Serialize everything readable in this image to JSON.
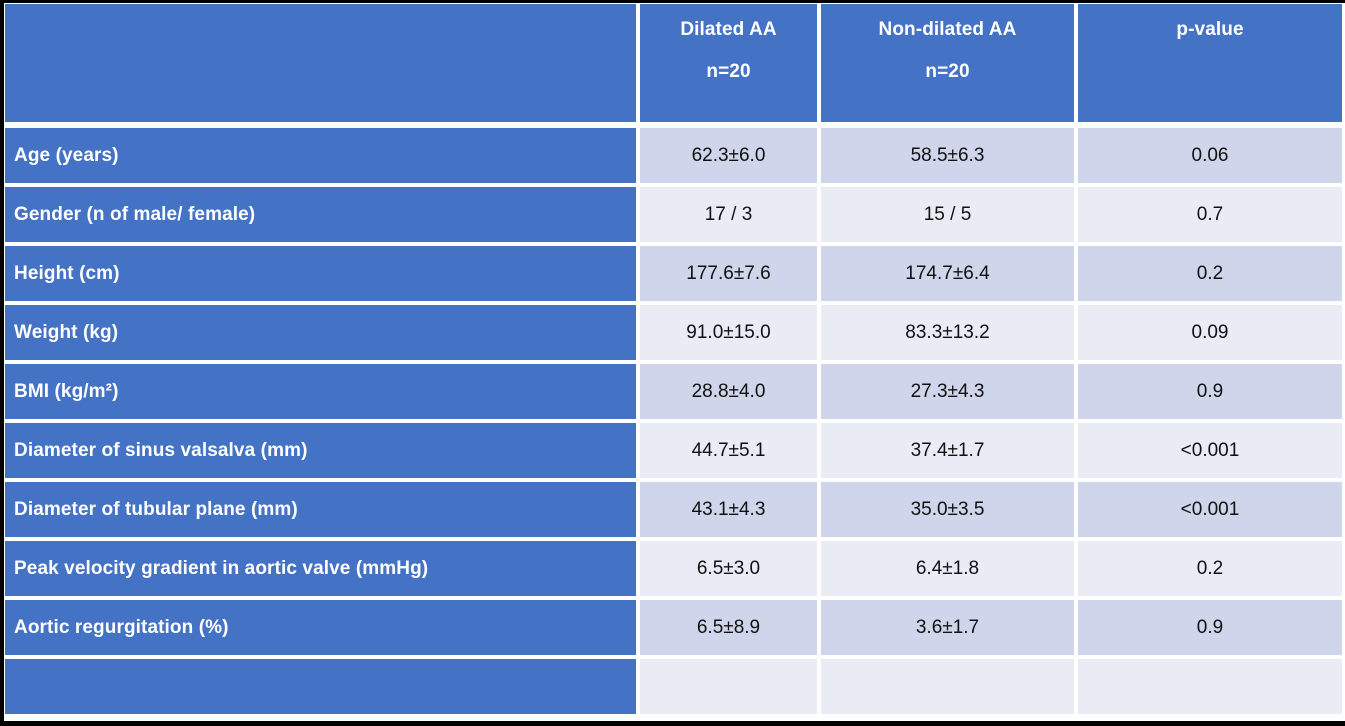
{
  "table": {
    "columns": [
      {
        "label": "",
        "sublabel": ""
      },
      {
        "label": "Dilated AA",
        "sublabel": "n=20"
      },
      {
        "label": "Non-dilated AA",
        "sublabel": "n=20"
      },
      {
        "label": "p-value",
        "sublabel": ""
      }
    ],
    "rows": [
      {
        "label": "Age (years)",
        "dilated": "62.3±6.0",
        "non_dilated": "58.5±6.3",
        "p": "0.06"
      },
      {
        "label": "Gender (n of male/ female)",
        "dilated": "17 / 3",
        "non_dilated": "15 / 5",
        "p": "0.7"
      },
      {
        "label": "Height (cm)",
        "dilated": "177.6±7.6",
        "non_dilated": "174.7±6.4",
        "p": "0.2"
      },
      {
        "label": "Weight (kg)",
        "dilated": "91.0±15.0",
        "non_dilated": "83.3±13.2",
        "p": "0.09"
      },
      {
        "label": "BMI (kg/m²)",
        "dilated": "28.8±4.0",
        "non_dilated": "27.3±4.3",
        "p": "0.9"
      },
      {
        "label": "Diameter of sinus valsalva (mm)",
        "dilated": "44.7±5.1",
        "non_dilated": "37.4±1.7",
        "p": "<0.001"
      },
      {
        "label": "Diameter of tubular plane (mm)",
        "dilated": "43.1±4.3",
        "non_dilated": "35.0±3.5",
        "p": "<0.001"
      },
      {
        "label": "Peak velocity gradient in aortic valve (mmHg)",
        "dilated": "6.5±3.0",
        "non_dilated": "6.4±1.8",
        "p": "0.2"
      },
      {
        "label": "Aortic regurgitation (%)",
        "dilated": "6.5±8.9",
        "non_dilated": "3.6±1.7",
        "p": "0.9"
      },
      {
        "label": "",
        "dilated": "",
        "non_dilated": "",
        "p": ""
      }
    ]
  },
  "colors": {
    "accent_blue": "#4472C4",
    "band_dark": "#CFD5EA",
    "band_light": "#E9EBF5",
    "header_text": "#FFFFFF",
    "data_text": "#111111",
    "grid_line": "#FFFFFF",
    "outer_frame": "#000000"
  }
}
